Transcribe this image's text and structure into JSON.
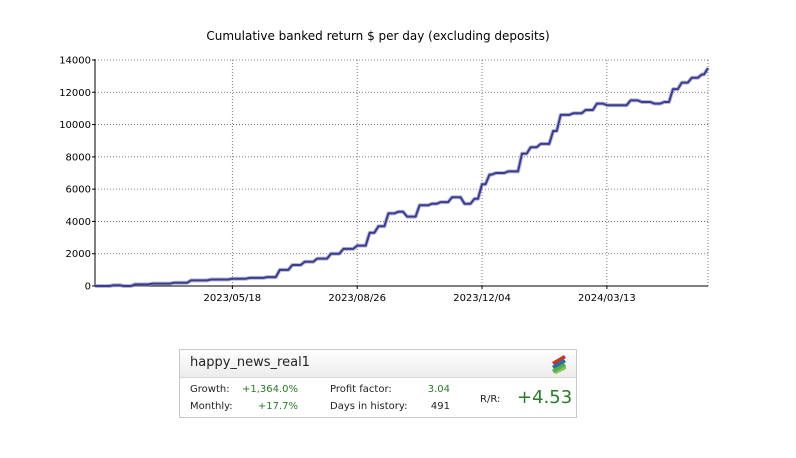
{
  "chart_data": {
    "type": "line",
    "title": "Cumulative banked return $ per day (excluding deposits)",
    "xlabel": "",
    "ylabel": "",
    "ylim": [
      0,
      14000
    ],
    "yticks": [
      0,
      2000,
      4000,
      6000,
      8000,
      10000,
      12000,
      14000
    ],
    "ytick_labels": [
      "0",
      "2000",
      "4000",
      "6000",
      "8000",
      "10000",
      "12000",
      "14000"
    ],
    "xlim": [
      "2023-01-28",
      "2024-06-02"
    ],
    "xticks": [
      "2023-05-18",
      "2023-08-26",
      "2023-12-04",
      "2024-03-13"
    ],
    "xtick_labels": [
      "2023/05/18",
      "2023/08/26",
      "2023/12/04",
      "2024/03/13"
    ],
    "grid": true,
    "line_color": "#3b3b8f",
    "series": [
      {
        "x": [
          "2023-01-28",
          "2023-02-05",
          "2023-02-12",
          "2023-02-20",
          "2023-03-01",
          "2023-03-15",
          "2023-04-01",
          "2023-04-15",
          "2023-05-01",
          "2023-05-18",
          "2023-06-01",
          "2023-06-15",
          "2023-06-25",
          "2023-07-05",
          "2023-07-15",
          "2023-07-25",
          "2023-08-05",
          "2023-08-15",
          "2023-08-26",
          "2023-09-05",
          "2023-09-12",
          "2023-09-20",
          "2023-09-28",
          "2023-10-05",
          "2023-10-15",
          "2023-10-25",
          "2023-11-01",
          "2023-11-10",
          "2023-11-20",
          "2023-11-28",
          "2023-12-04",
          "2023-12-10",
          "2023-12-15",
          "2023-12-25",
          "2024-01-05",
          "2024-01-12",
          "2024-01-20",
          "2024-01-30",
          "2024-02-05",
          "2024-02-15",
          "2024-02-25",
          "2024-03-05",
          "2024-03-13",
          "2024-03-20",
          "2024-04-01",
          "2024-04-10",
          "2024-04-20",
          "2024-04-28",
          "2024-05-05",
          "2024-05-12",
          "2024-05-20",
          "2024-05-28",
          "2024-06-02"
        ],
        "y": [
          0,
          0,
          50,
          0,
          100,
          150,
          200,
          350,
          400,
          450,
          500,
          550,
          1000,
          1300,
          1500,
          1700,
          2000,
          2300,
          2500,
          3300,
          3700,
          4500,
          4600,
          4300,
          5000,
          5100,
          5200,
          5500,
          5100,
          5400,
          6300,
          6900,
          7000,
          7100,
          8200,
          8600,
          8800,
          9600,
          10600,
          10700,
          10900,
          11300,
          11200,
          11200,
          11500,
          11400,
          11300,
          11400,
          12200,
          12600,
          12900,
          13100,
          13500
        ]
      }
    ]
  },
  "widget": {
    "name": "happy_news_real1",
    "growth_label": "Growth:",
    "growth_value": "+1,364.0%",
    "monthly_label": "Monthly:",
    "monthly_value": "+17.7%",
    "profit_factor_label": "Profit factor:",
    "profit_factor_value": "3.04",
    "days_label": "Days in history:",
    "days_value": "491",
    "rr_label": "R/R:",
    "rr_value": "+4.53",
    "accent_color": "#2a7a2a"
  }
}
